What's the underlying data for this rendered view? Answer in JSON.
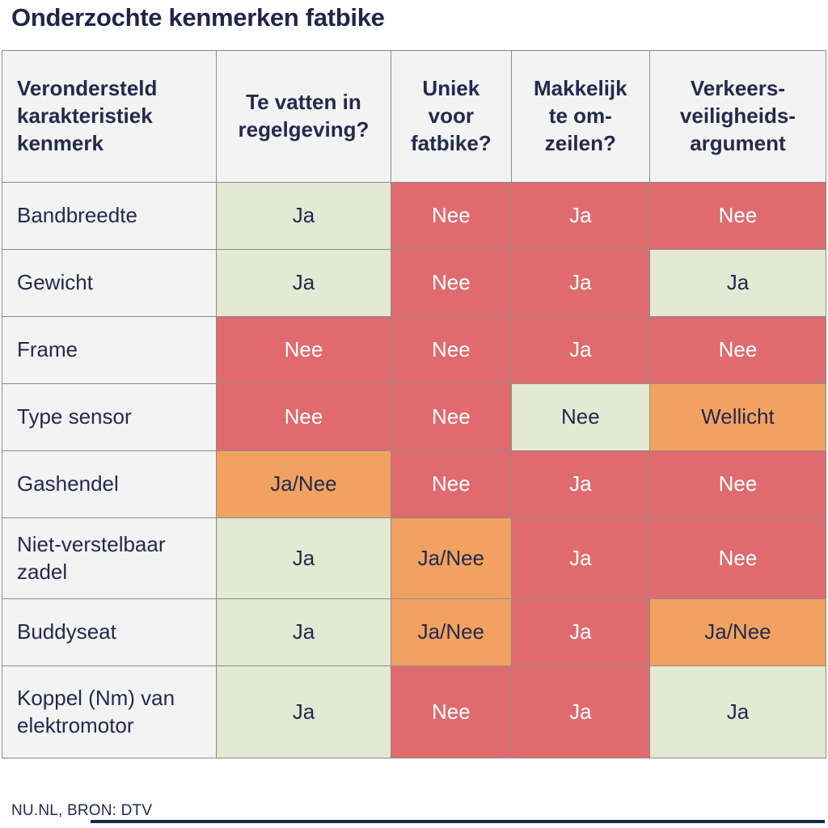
{
  "title": "Onderzochte kenmerken fatbike",
  "footer": {
    "source": "NU.NL, BRON: DTV"
  },
  "colors": {
    "red": "#e06b6e",
    "orange": "#f2a260",
    "green": "#e3e9d2",
    "cell_gray": "#f3f3f3",
    "navy_text": "#232a4d",
    "title_navy": "#1f2649",
    "border_gray": "#8b8b8b"
  },
  "legend_semantics": {
    "green": "positief",
    "red": "negatief",
    "orange": "gemengd"
  },
  "chart_data": {
    "type": "table",
    "title": "Onderzochte kenmerken fatbike",
    "columns": [
      "Verondersteld\nkarakteristiek\nkenmerk",
      "Te vatten in\nregelgeving?",
      "Uniek\nvoor\nfatbike?",
      "Makkelijk\nte om-\nzeilen?",
      "Verkeers-\nveiligheids-\nargument"
    ],
    "rows": [
      {
        "label": "Bandbreedte",
        "cells": [
          {
            "text": "Ja",
            "color": "green"
          },
          {
            "text": "Nee",
            "color": "red"
          },
          {
            "text": "Ja",
            "color": "red"
          },
          {
            "text": "Nee",
            "color": "red"
          }
        ]
      },
      {
        "label": "Gewicht",
        "cells": [
          {
            "text": "Ja",
            "color": "green"
          },
          {
            "text": "Nee",
            "color": "red"
          },
          {
            "text": "Ja",
            "color": "red"
          },
          {
            "text": "Ja",
            "color": "green"
          }
        ]
      },
      {
        "label": "Frame",
        "cells": [
          {
            "text": "Nee",
            "color": "red"
          },
          {
            "text": "Nee",
            "color": "red"
          },
          {
            "text": "Ja",
            "color": "red"
          },
          {
            "text": "Nee",
            "color": "red"
          }
        ]
      },
      {
        "label": "Type sensor",
        "cells": [
          {
            "text": "Nee",
            "color": "red"
          },
          {
            "text": "Nee",
            "color": "red"
          },
          {
            "text": "Nee",
            "color": "green"
          },
          {
            "text": "Wellicht",
            "color": "orange"
          }
        ]
      },
      {
        "label": "Gashendel",
        "cells": [
          {
            "text": "Ja/Nee",
            "color": "orange"
          },
          {
            "text": "Nee",
            "color": "red"
          },
          {
            "text": "Ja",
            "color": "red"
          },
          {
            "text": "Nee",
            "color": "red"
          }
        ]
      },
      {
        "label": "Niet-verstelbaar zadel",
        "cells": [
          {
            "text": "Ja",
            "color": "green"
          },
          {
            "text": "Ja/Nee",
            "color": "orange"
          },
          {
            "text": "Ja",
            "color": "red"
          },
          {
            "text": "Nee",
            "color": "red"
          }
        ]
      },
      {
        "label": "Buddyseat",
        "cells": [
          {
            "text": "Ja",
            "color": "green"
          },
          {
            "text": "Ja/Nee",
            "color": "orange"
          },
          {
            "text": "Ja",
            "color": "red"
          },
          {
            "text": "Ja/Nee",
            "color": "orange"
          }
        ]
      },
      {
        "label": "Koppel (Nm) van elektromotor",
        "cells": [
          {
            "text": "Ja",
            "color": "green"
          },
          {
            "text": "Nee",
            "color": "red"
          },
          {
            "text": "Ja",
            "color": "red"
          },
          {
            "text": "Ja",
            "color": "green"
          }
        ]
      }
    ]
  }
}
